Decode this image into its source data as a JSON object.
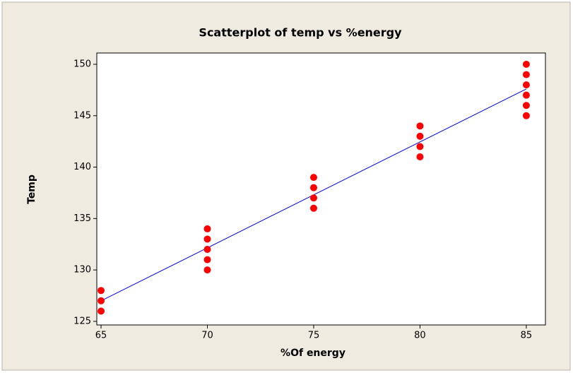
{
  "chart_data": {
    "type": "scatter",
    "title": "Scatterplot of temp vs %energy",
    "x_label": "%Of energy",
    "y_label": "Temp",
    "series": [
      {
        "color": "#ff0000",
        "x": [
          65,
          65,
          65,
          70,
          70,
          70,
          70,
          70,
          75,
          75,
          75,
          75,
          80,
          80,
          80,
          80,
          85,
          85,
          85,
          85,
          85,
          85
        ],
        "values": [
          126,
          127,
          128,
          130,
          131,
          132,
          133,
          134,
          136,
          137,
          138,
          139,
          141,
          142,
          143,
          144,
          145,
          146,
          147,
          148,
          149,
          150
        ]
      }
    ],
    "fit_line": {
      "color": "#0000ff",
      "x": [
        65,
        85
      ],
      "values": [
        127.0,
        147.6
      ]
    },
    "xlim": [
      64.8,
      85.9
    ],
    "ylim": [
      124.65,
      151.1
    ],
    "xticks": [
      65,
      70,
      75,
      80,
      85
    ],
    "yticks": [
      125,
      130,
      135,
      140,
      145,
      150
    ]
  }
}
